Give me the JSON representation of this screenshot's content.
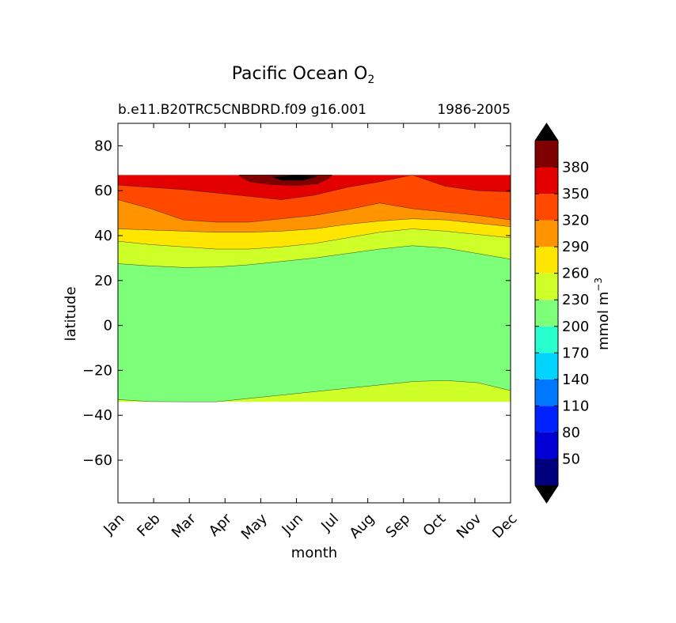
{
  "chart_data": {
    "type": "contourf",
    "title": "Pacific Ocean O",
    "title_subscript": "2",
    "subtitle_left": "b.e11.B20TRC5CNBDRD.f09 g16.001",
    "subtitle_right": "1986-2005",
    "xlabel": "month",
    "ylabel": "latitude",
    "x_ticks": [
      "Jan",
      "Feb",
      "Mar",
      "Apr",
      "May",
      "Jun",
      "Jul",
      "Aug",
      "Sep",
      "Oct",
      "Nov",
      "Dec"
    ],
    "x_range": [
      0,
      11
    ],
    "y_ticks": [
      80,
      60,
      40,
      20,
      0,
      -20,
      -40,
      -60
    ],
    "y_tick_labels": [
      "80",
      "60",
      "40",
      "20",
      "0",
      "−20",
      "−40",
      "−60"
    ],
    "y_range": [
      -79,
      90
    ],
    "data_lat_range": [
      -34,
      67
    ],
    "units": "mmol m",
    "units_exponent": "−3",
    "levels": [
      20,
      50,
      80,
      110,
      140,
      170,
      200,
      230,
      260,
      290,
      320,
      350,
      380,
      410
    ],
    "colorbar_labels": [
      "380",
      "350",
      "320",
      "290",
      "260",
      "230",
      "200",
      "170",
      "140",
      "110",
      "80",
      "50"
    ],
    "colorbar_values": [
      380,
      350,
      320,
      290,
      260,
      230,
      200,
      170,
      140,
      110,
      80,
      50
    ],
    "colormap": [
      "#00007f",
      "#0000d4",
      "#0022ff",
      "#0077ff",
      "#00d4ff",
      "#29ffce",
      "#7dff7a",
      "#ceff29",
      "#ffe600",
      "#ff9400",
      "#ff4800",
      "#e30000",
      "#7f0000"
    ],
    "under_color": "#000000",
    "over_color": "#000000",
    "contour_boundaries": [
      {
        "name": "230",
        "lat": [
          -33,
          -33.9,
          -34,
          -34,
          -32.5,
          -31,
          -29.5,
          -28,
          -26.5,
          -25,
          -24.5,
          -25.5,
          -29
        ]
      },
      {
        "name": "260",
        "lat": [
          27.5,
          26.5,
          25.8,
          26,
          27,
          28.5,
          30,
          32,
          34,
          35.5,
          34.5,
          32,
          29.5
        ]
      },
      {
        "name": "290",
        "lat": [
          37.5,
          36,
          35,
          34,
          34,
          35,
          36.5,
          39,
          41.5,
          43,
          42,
          40.5,
          39
        ]
      },
      {
        "name": "320",
        "lat": [
          43,
          42.5,
          42,
          41.5,
          41.5,
          42,
          43,
          45,
          46.5,
          47.5,
          47,
          45.5,
          44
        ]
      },
      {
        "name": "350",
        "lat": [
          56,
          52,
          47,
          46,
          46,
          47.5,
          49,
          51.5,
          54.5,
          52,
          50.5,
          49,
          47
        ]
      },
      {
        "name": "380",
        "lat": [
          62.5,
          61.5,
          60.5,
          59,
          57.5,
          56,
          58,
          61.5,
          64,
          67,
          62,
          60,
          59.5
        ]
      }
    ]
  }
}
